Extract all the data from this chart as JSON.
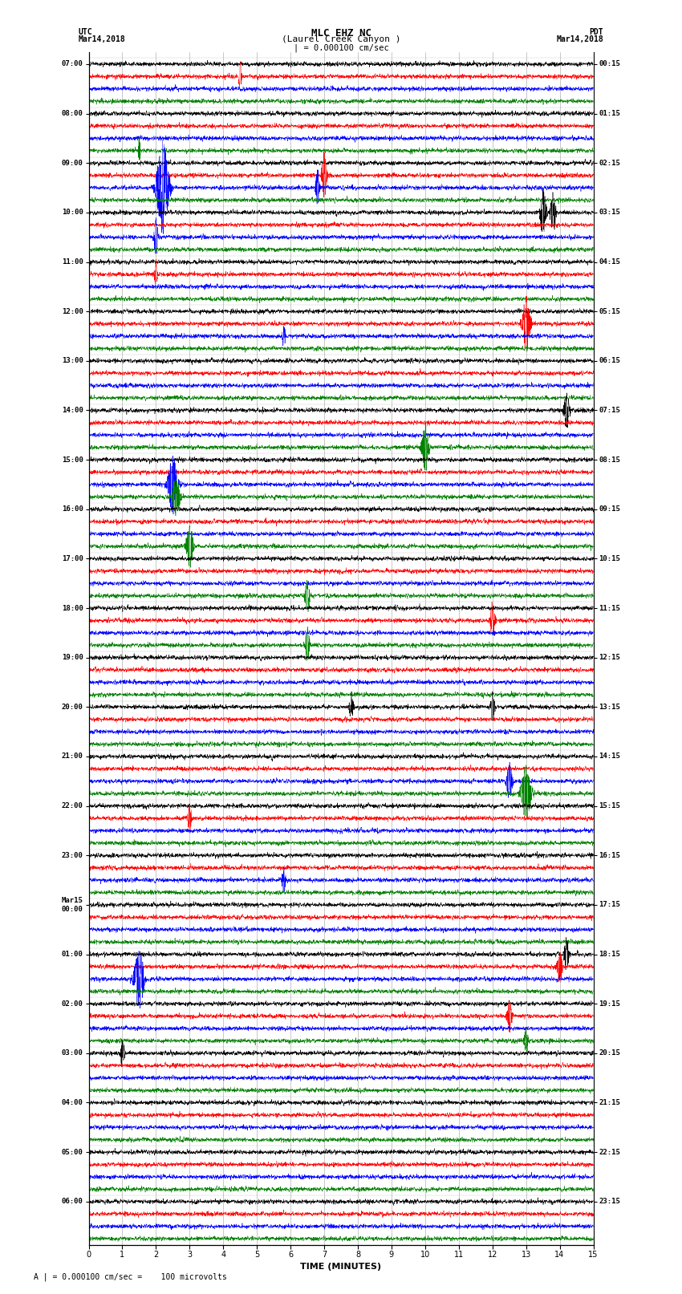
{
  "title_line1": "MLC EHZ NC",
  "title_line2": "(Laurel Creek Canyon )",
  "title_line3": "| = 0.000100 cm/sec",
  "left_header_line1": "UTC",
  "left_header_line2": "Mar14,2018",
  "right_header_line1": "PDT",
  "right_header_line2": "Mar14,2018",
  "xlabel": "TIME (MINUTES)",
  "footer": "A | = 0.000100 cm/sec =    100 microvolts",
  "x_min": 0,
  "x_max": 15,
  "trace_colors": [
    "black",
    "red",
    "blue",
    "green"
  ],
  "utc_labels": [
    "07:00",
    "08:00",
    "09:00",
    "10:00",
    "11:00",
    "12:00",
    "13:00",
    "14:00",
    "15:00",
    "16:00",
    "17:00",
    "18:00",
    "19:00",
    "20:00",
    "21:00",
    "22:00",
    "23:00",
    "Mar15\n00:00",
    "01:00",
    "02:00",
    "03:00",
    "04:00",
    "05:00",
    "06:00"
  ],
  "pdt_labels": [
    "00:15",
    "01:15",
    "02:15",
    "03:15",
    "04:15",
    "05:15",
    "06:15",
    "07:15",
    "08:15",
    "09:15",
    "10:15",
    "11:15",
    "12:15",
    "13:15",
    "14:15",
    "15:15",
    "16:15",
    "17:15",
    "18:15",
    "19:15",
    "20:15",
    "21:15",
    "22:15",
    "23:15"
  ],
  "n_hour_blocks": 24,
  "traces_per_block": 4,
  "background_color": "#ffffff",
  "grid_color": "#888888",
  "noise_amplitude": 0.25,
  "seed": 42,
  "fig_width": 8.5,
  "fig_height": 16.13,
  "dpi": 100
}
